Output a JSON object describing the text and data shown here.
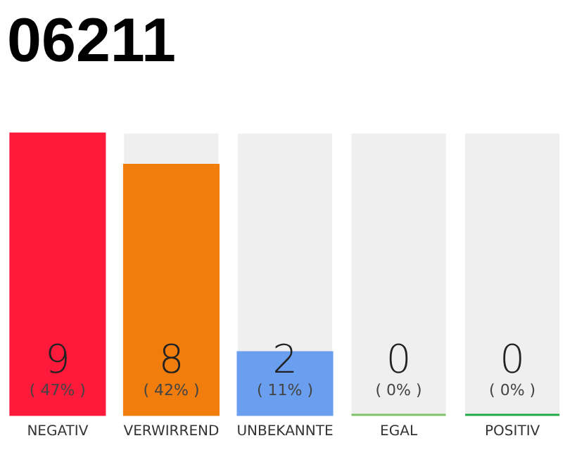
{
  "chart_data": {
    "type": "bar",
    "title": "06211",
    "categories": [
      "NEGATIV",
      "VERWIRREND",
      "UNBEKANNTE",
      "EGAL",
      "POSITIV"
    ],
    "values": [
      9,
      8,
      2,
      0,
      0
    ],
    "colors": [
      "#ff1a3c",
      "#f07d0c",
      "#6a9ff0",
      "#7dc466",
      "#22aa44"
    ],
    "ylim": [
      0,
      9
    ],
    "tick_labels": "x",
    "data_labels": true,
    "annotations": [
      "( 47% )",
      "( 42% )",
      "( 11% )",
      "( 0% )",
      "( 0% )"
    ]
  }
}
